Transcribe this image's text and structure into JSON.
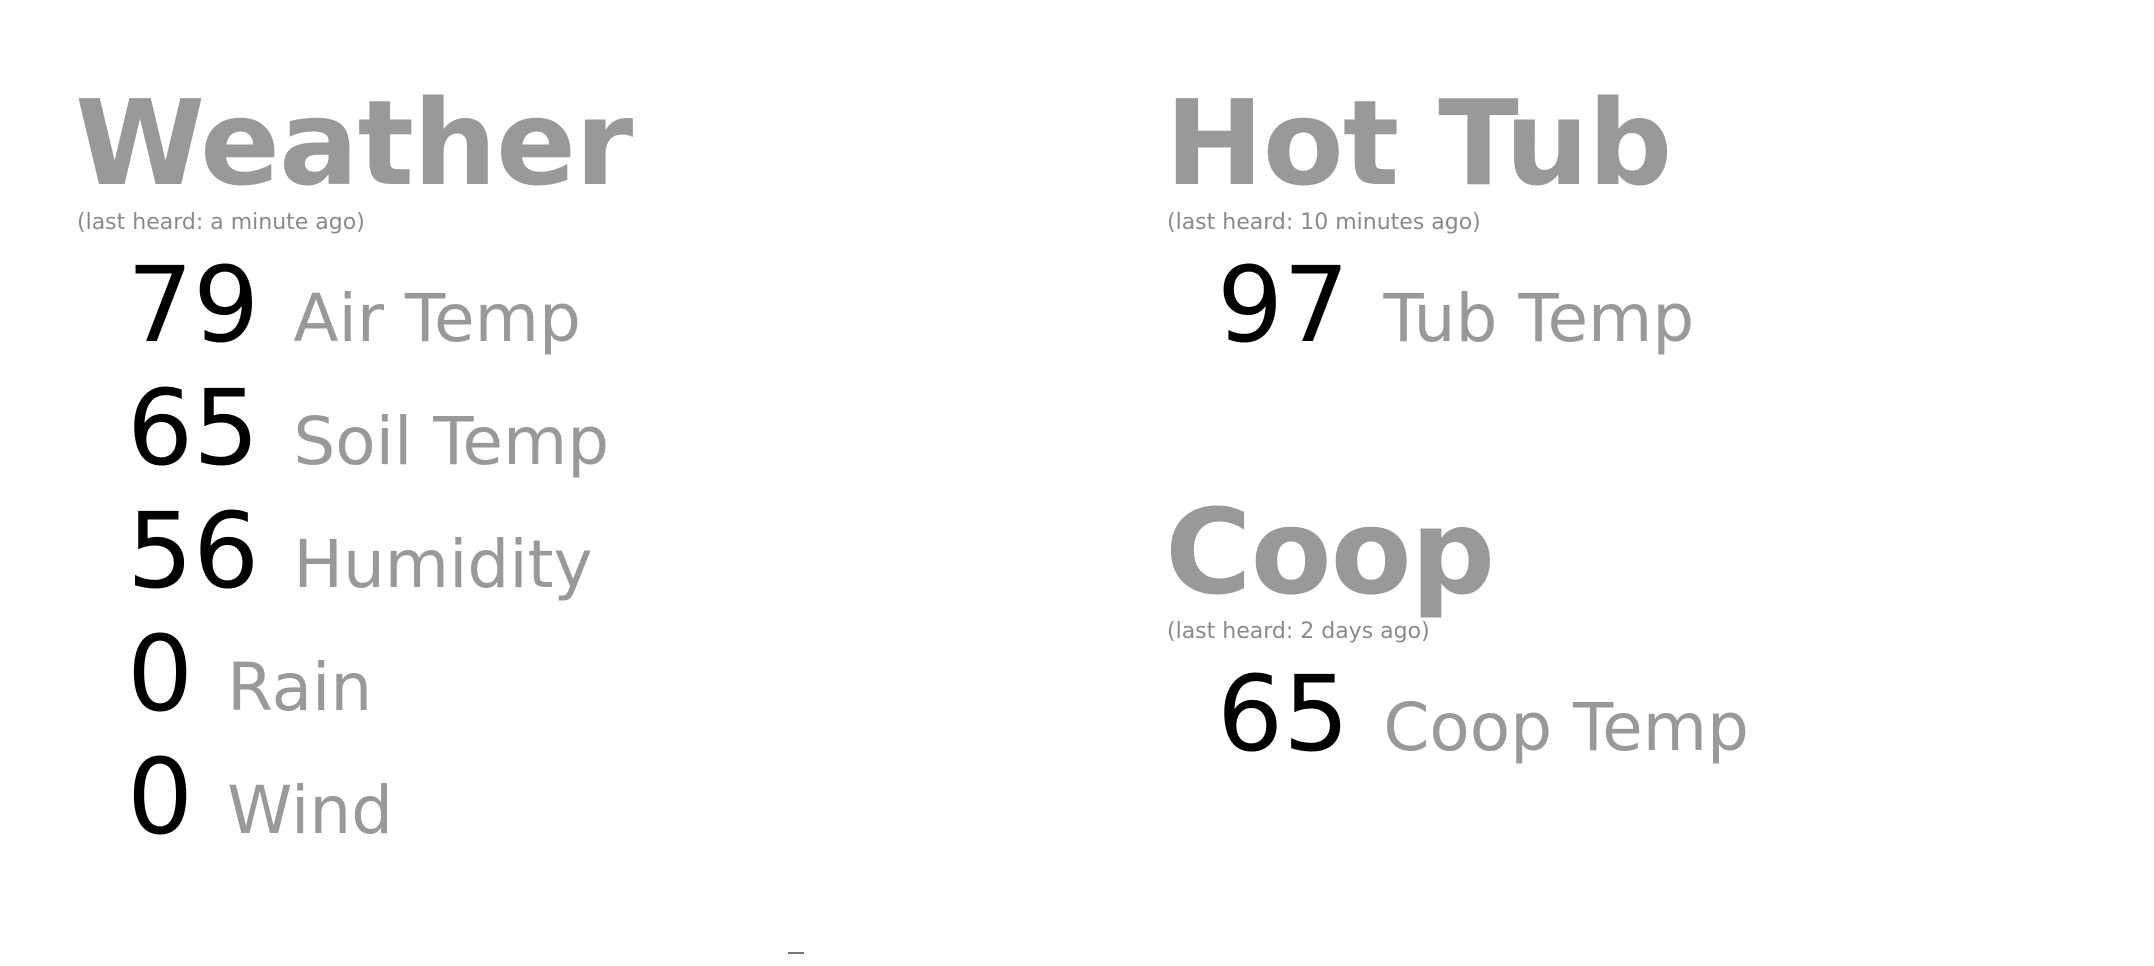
{
  "panels": [
    {
      "title": "Weather",
      "last_heard": "(last heard: a minute ago)",
      "readings": [
        {
          "value": "79",
          "label": "Air Temp"
        },
        {
          "value": "65",
          "label": "Soil Temp"
        },
        {
          "value": "56",
          "label": "Humidity"
        },
        {
          "value": "0",
          "label": "Rain"
        },
        {
          "value": "0",
          "label": "Wind"
        }
      ]
    },
    {
      "title": "Hot Tub",
      "last_heard": "(last heard: 10 minutes ago)",
      "readings": [
        {
          "value": "97",
          "label": "Tub Temp"
        }
      ]
    },
    {
      "title": "Coop",
      "last_heard": "(last heard: 2 days ago)",
      "readings": [
        {
          "value": "65",
          "label": "Coop Temp"
        }
      ]
    }
  ],
  "colors": {
    "title": "#999999",
    "label": "#999999",
    "value": "#000000",
    "last_heard": "#8a8a8a",
    "background": "#ffffff"
  }
}
